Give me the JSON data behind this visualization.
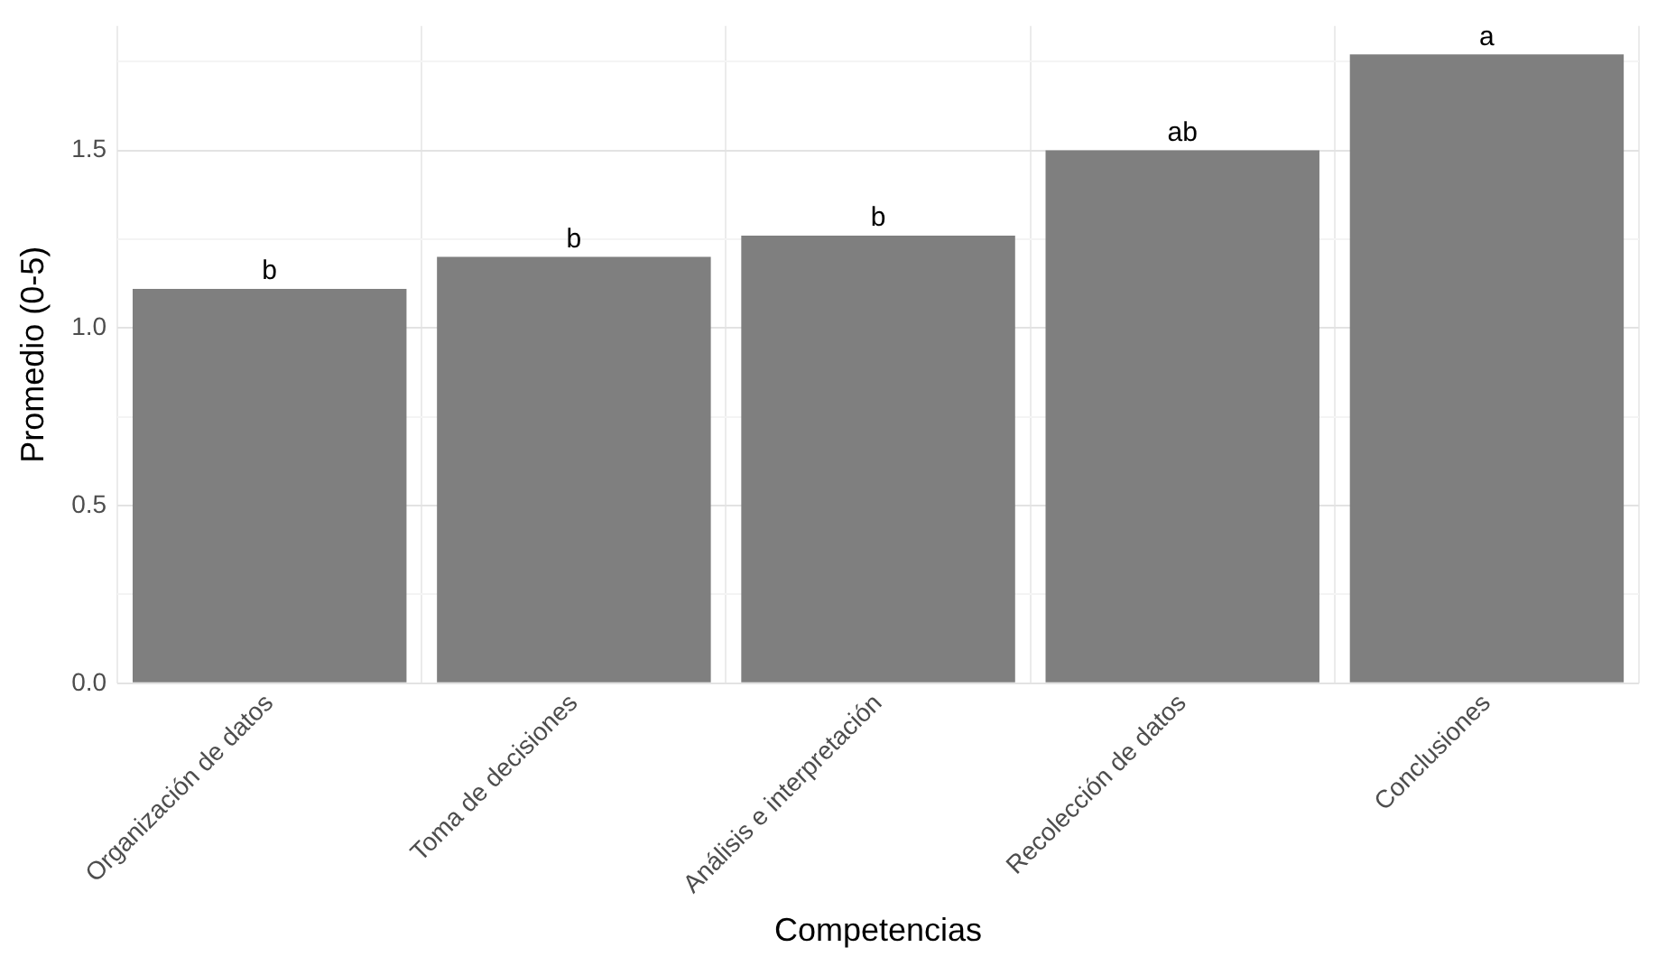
{
  "chart_data": {
    "type": "bar",
    "xlabel": "Competencias",
    "ylabel": "Promedio (0-5)",
    "categories": [
      "Organización de datos",
      "Toma de decisiones",
      "Análisis e interpretación",
      "Recolección de datos",
      "Conclusiones"
    ],
    "values": [
      1.11,
      1.2,
      1.26,
      1.5,
      1.77
    ],
    "color": "#7f7f7f",
    "ylim": [
      0,
      1.85
    ],
    "yticks": [
      {
        "value": 0,
        "label": "0.0"
      },
      {
        "value": 0.25,
        "label": null
      },
      {
        "value": 0.5,
        "label": "0.5"
      },
      {
        "value": 0.75,
        "label": null
      },
      {
        "value": 1,
        "label": "1.0"
      },
      {
        "value": 1.25,
        "label": null
      },
      {
        "value": 1.5,
        "label": "1.5"
      },
      {
        "value": 1.75,
        "label": null
      }
    ],
    "grid": true,
    "legend": false,
    "annotations": [
      {
        "text": "b",
        "x": "Organización de datos",
        "y": 1.11
      },
      {
        "text": "b",
        "x": "Toma de decisiones",
        "y": 1.2
      },
      {
        "text": "b",
        "x": "Análisis e interpretación",
        "y": 1.26
      },
      {
        "text": "ab",
        "x": "Recolección de datos",
        "y": 1.5
      },
      {
        "text": "a",
        "x": "Conclusiones",
        "y": 1.77
      }
    ]
  }
}
